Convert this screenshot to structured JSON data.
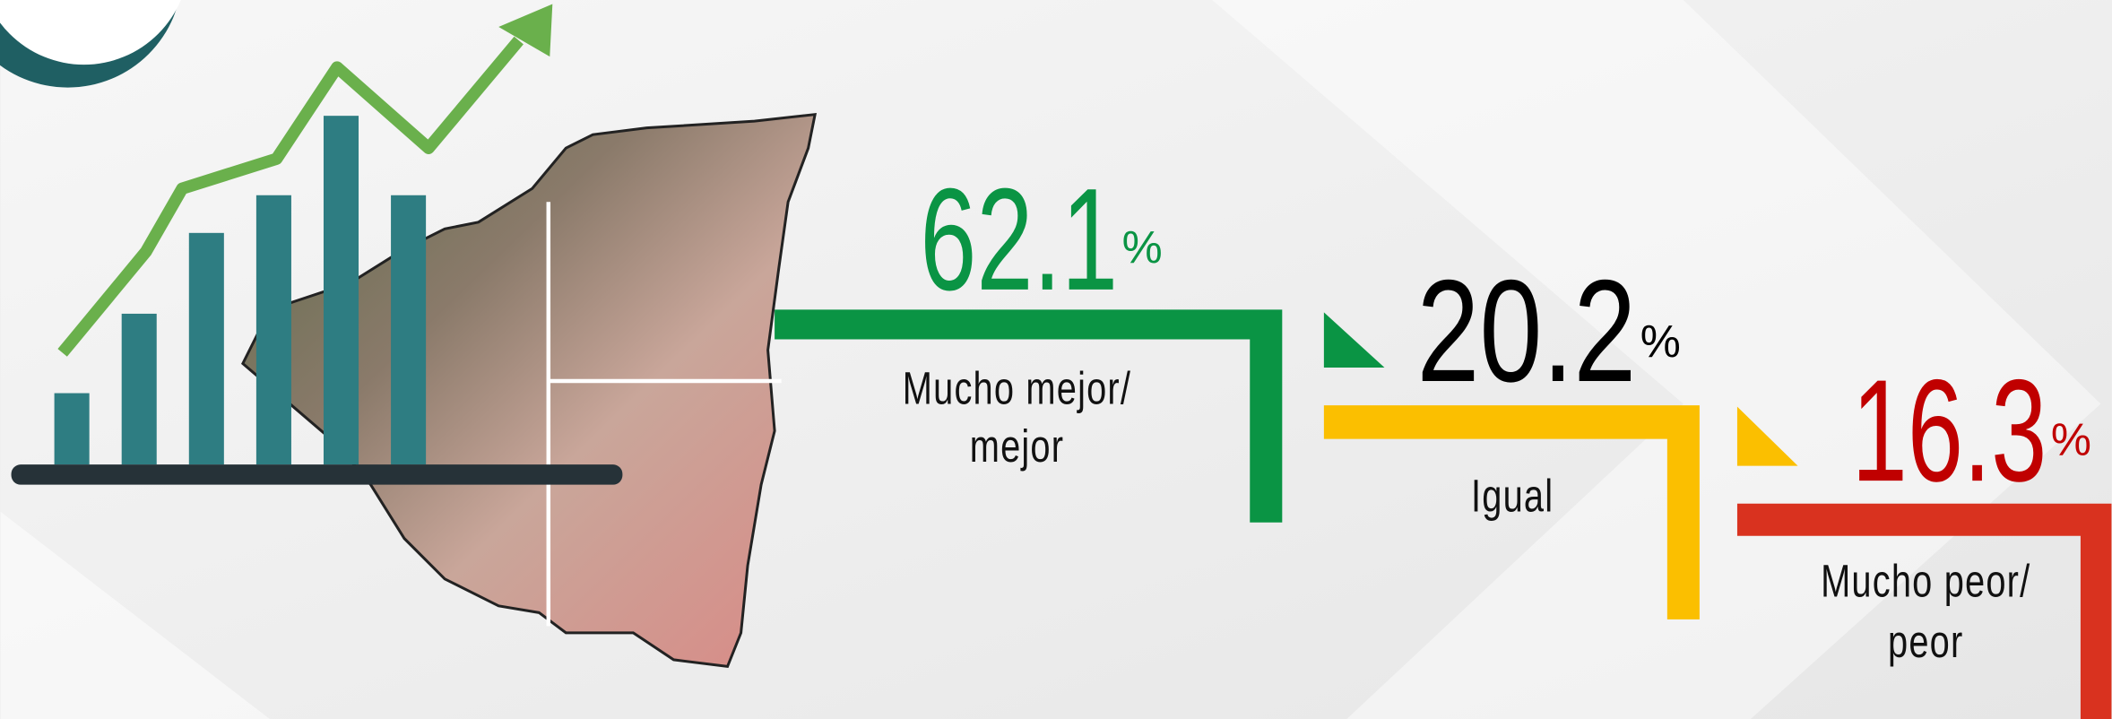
{
  "chart_data": {
    "type": "step",
    "unit": "%",
    "categories": [
      [
        "Mucho mejor/",
        "mejor"
      ],
      [
        "Igual"
      ],
      [
        "Mucho peor/",
        "peor"
      ]
    ],
    "values": [
      62.1,
      20.2,
      16.3
    ],
    "colors": [
      "#0a9444",
      "#fbbf00",
      "#d9321f"
    ],
    "label_colors": [
      "#0a9444",
      "#000000",
      "#c00000"
    ]
  }
}
